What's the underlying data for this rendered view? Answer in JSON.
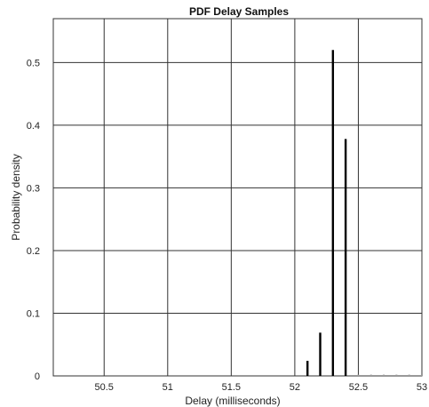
{
  "chart_data": {
    "type": "bar",
    "title": "PDF Delay Samples",
    "xlabel": "Delay (milliseconds)",
    "ylabel": "Probability density",
    "xlim": [
      50.1,
      53
    ],
    "ylim": [
      0,
      0.57
    ],
    "x_ticks": [
      "50.5",
      "51",
      "51.5",
      "52",
      "52.5",
      "53"
    ],
    "y_ticks": [
      "0",
      "0.1",
      "0.2",
      "0.3",
      "0.4",
      "0.5"
    ],
    "grid": true,
    "series": [
      {
        "x": [
          52.1,
          52.2,
          52.3,
          52.4,
          52.5,
          52.6,
          52.7,
          52.8,
          52.9,
          53.0
        ],
        "values": [
          0.024,
          0.069,
          0.52,
          0.378,
          0.002,
          0.002,
          0.002,
          0.002,
          0.002,
          0.002
        ]
      }
    ],
    "colors": {
      "bars": "#000000",
      "grid": "#333333",
      "baseline_tail": "#9a9a9a"
    }
  }
}
